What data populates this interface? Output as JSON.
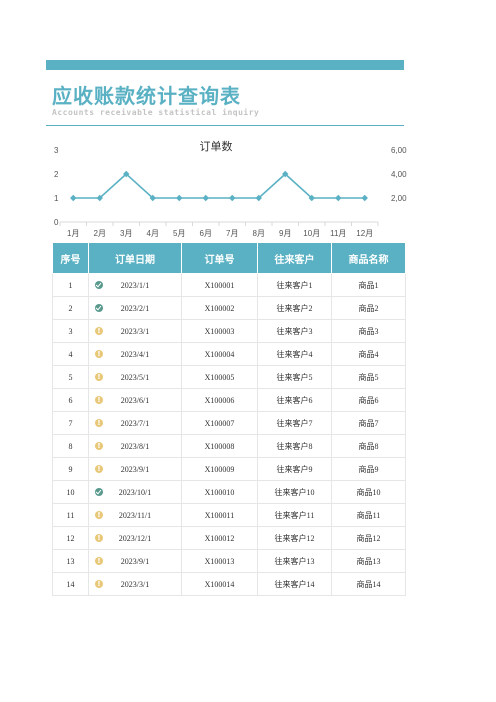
{
  "header": {
    "title": "应收账款统计查询表",
    "subtitle": "Accounts receivable statistical inquiry"
  },
  "colors": {
    "accent": "#5ab1c3",
    "ok": "#5a9a8e",
    "warn": "#e8c878"
  },
  "chart_data": {
    "type": "line",
    "title": "订单数",
    "categories": [
      "1月",
      "2月",
      "3月",
      "4月",
      "5月",
      "6月",
      "7月",
      "8月",
      "9月",
      "10月",
      "11月",
      "12月"
    ],
    "series": [
      {
        "values": [
          1,
          1,
          2,
          1,
          1,
          1,
          1,
          1,
          2,
          1,
          1,
          1
        ]
      }
    ],
    "ylim": [
      0,
      3
    ],
    "yticks": [
      "0",
      "1",
      "2",
      "3"
    ],
    "y2ticks": [
      "2,00",
      "4,00",
      "6,00"
    ],
    "grid": false,
    "legend": "none"
  },
  "table": {
    "headers": [
      "序号",
      "订单日期",
      "订单号",
      "往来客户",
      "商品名称"
    ],
    "rows": [
      {
        "no": "1",
        "status": "check",
        "date": "2023/1/1",
        "order": "X100001",
        "customer": "往来客户1",
        "product": "商品1"
      },
      {
        "no": "2",
        "status": "check",
        "date": "2023/2/1",
        "order": "X100002",
        "customer": "往来客户2",
        "product": "商品2"
      },
      {
        "no": "3",
        "status": "warn",
        "date": "2023/3/1",
        "order": "X100003",
        "customer": "往来客户3",
        "product": "商品3"
      },
      {
        "no": "4",
        "status": "warn",
        "date": "2023/4/1",
        "order": "X100004",
        "customer": "往来客户4",
        "product": "商品4"
      },
      {
        "no": "5",
        "status": "warn",
        "date": "2023/5/1",
        "order": "X100005",
        "customer": "往来客户5",
        "product": "商品5"
      },
      {
        "no": "6",
        "status": "warn",
        "date": "2023/6/1",
        "order": "X100006",
        "customer": "往来客户6",
        "product": "商品6"
      },
      {
        "no": "7",
        "status": "warn",
        "date": "2023/7/1",
        "order": "X100007",
        "customer": "往来客户7",
        "product": "商品7"
      },
      {
        "no": "8",
        "status": "warn",
        "date": "2023/8/1",
        "order": "X100008",
        "customer": "往来客户8",
        "product": "商品8"
      },
      {
        "no": "9",
        "status": "warn",
        "date": "2023/9/1",
        "order": "X100009",
        "customer": "往来客户9",
        "product": "商品9"
      },
      {
        "no": "10",
        "status": "check",
        "date": "2023/10/1",
        "order": "X100010",
        "customer": "往来客户10",
        "product": "商品10"
      },
      {
        "no": "11",
        "status": "warn",
        "date": "2023/11/1",
        "order": "X100011",
        "customer": "往来客户11",
        "product": "商品11"
      },
      {
        "no": "12",
        "status": "warn",
        "date": "2023/12/1",
        "order": "X100012",
        "customer": "往来客户12",
        "product": "商品12"
      },
      {
        "no": "13",
        "status": "warn",
        "date": "2023/9/1",
        "order": "X100013",
        "customer": "往来客户13",
        "product": "商品13"
      },
      {
        "no": "14",
        "status": "warn",
        "date": "2023/3/1",
        "order": "X100014",
        "customer": "往来客户14",
        "product": "商品14"
      }
    ]
  }
}
